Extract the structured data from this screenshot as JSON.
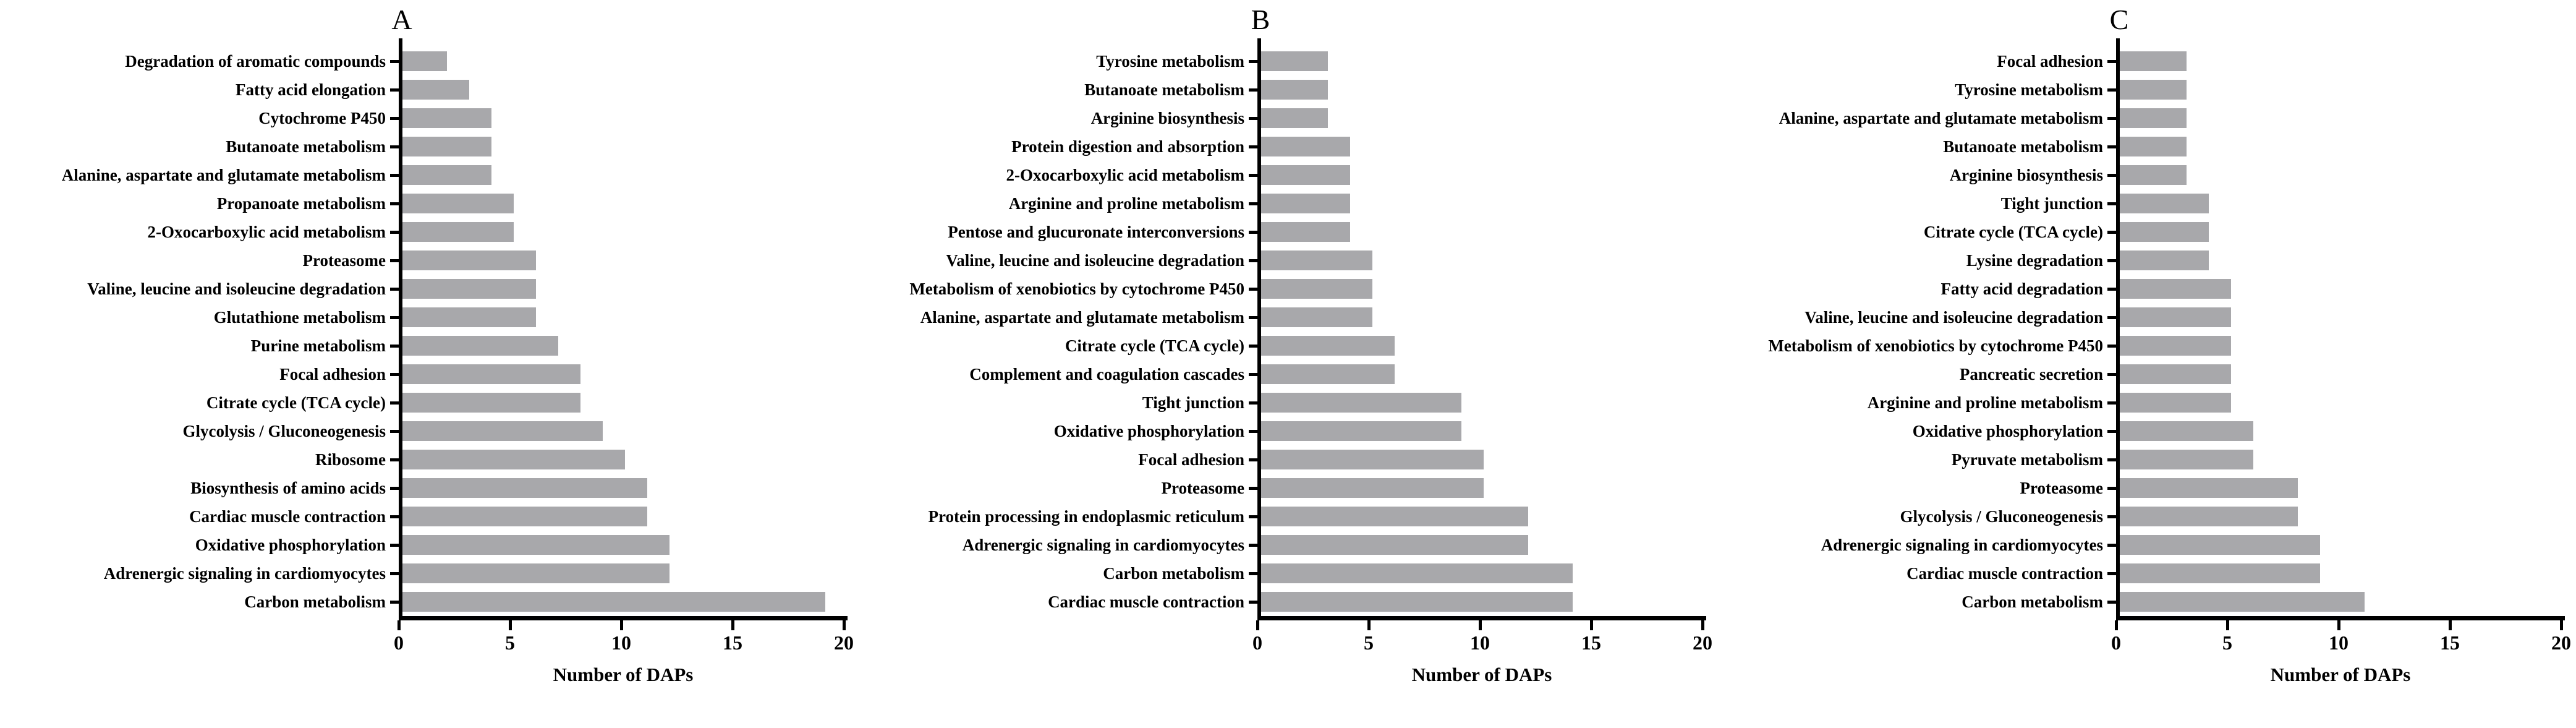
{
  "figure": {
    "xlabel": "Number of DAPs",
    "bar_color": "#a8a8ab",
    "axis_color": "#000000",
    "text_color": "#000000"
  },
  "chart_data": [
    {
      "type": "bar",
      "orientation": "horizontal",
      "title": "A",
      "xlabel": "Number of DAPs",
      "xlim": [
        0,
        20
      ],
      "x_ticks": [
        0,
        5,
        10,
        15,
        20
      ],
      "grid": false,
      "legend": false,
      "categories": [
        "Degradation of aromatic compounds",
        "Fatty acid elongation",
        "Cytochrome P450",
        "Butanoate metabolism",
        "Alanine, aspartate and glutamate metabolism",
        "Propanoate metabolism",
        "2-Oxocarboxylic acid metabolism",
        "Proteasome",
        "Valine, leucine and isoleucine degradation",
        "Glutathione metabolism",
        "Purine metabolism",
        "Focal adhesion",
        "Citrate cycle (TCA cycle)",
        "Glycolysis / Gluconeogenesis",
        "Ribosome",
        "Biosynthesis of amino acids",
        "Cardiac muscle contraction",
        "Oxidative phosphorylation",
        "Adrenergic signaling in cardiomyocytes",
        "Carbon metabolism"
      ],
      "values": [
        2,
        3,
        4,
        4,
        4,
        5,
        5,
        6,
        6,
        6,
        7,
        8,
        8,
        9,
        10,
        11,
        11,
        12,
        12,
        19
      ]
    },
    {
      "type": "bar",
      "orientation": "horizontal",
      "title": "B",
      "xlabel": "Number of DAPs",
      "xlim": [
        0,
        20
      ],
      "x_ticks": [
        0,
        5,
        10,
        15,
        20
      ],
      "grid": false,
      "legend": false,
      "categories": [
        "Tyrosine metabolism",
        "Butanoate metabolism",
        "Arginine biosynthesis",
        "Protein digestion and absorption",
        "2-Oxocarboxylic acid metabolism",
        "Arginine and proline metabolism",
        "Pentose and glucuronate interconversions",
        "Valine, leucine and isoleucine degradation",
        "Metabolism of xenobiotics by cytochrome P450",
        "Alanine, aspartate and glutamate metabolism",
        "Citrate cycle (TCA cycle)",
        "Complement and coagulation cascades",
        "Tight junction",
        "Oxidative phosphorylation",
        "Focal adhesion",
        "Proteasome",
        "Protein processing in endoplasmic reticulum",
        "Adrenergic signaling in cardiomyocytes",
        "Carbon metabolism",
        "Cardiac muscle contraction"
      ],
      "values": [
        3,
        3,
        3,
        4,
        4,
        4,
        4,
        5,
        5,
        5,
        6,
        6,
        9,
        9,
        10,
        10,
        12,
        12,
        14,
        14
      ]
    },
    {
      "type": "bar",
      "orientation": "horizontal",
      "title": "C",
      "xlabel": "Number of DAPs",
      "xlim": [
        0,
        20
      ],
      "x_ticks": [
        0,
        5,
        10,
        15,
        20
      ],
      "grid": false,
      "legend": false,
      "categories": [
        "Focal adhesion",
        "Tyrosine metabolism",
        "Alanine, aspartate and glutamate metabolism",
        "Butanoate metabolism",
        "Arginine biosynthesis",
        "Tight junction",
        "Citrate cycle (TCA cycle)",
        "Lysine degradation",
        "Fatty acid degradation",
        "Valine, leucine and isoleucine degradation",
        "Metabolism of xenobiotics by cytochrome P450",
        "Pancreatic secretion",
        "Arginine and proline metabolism",
        "Oxidative phosphorylation",
        "Pyruvate metabolism",
        "Proteasome",
        "Glycolysis / Gluconeogenesis",
        "Adrenergic signaling in cardiomyocytes",
        "Cardiac muscle contraction",
        "Carbon metabolism"
      ],
      "values": [
        3,
        3,
        3,
        3,
        3,
        4,
        4,
        4,
        5,
        5,
        5,
        5,
        5,
        6,
        6,
        8,
        8,
        9,
        9,
        11
      ]
    }
  ]
}
